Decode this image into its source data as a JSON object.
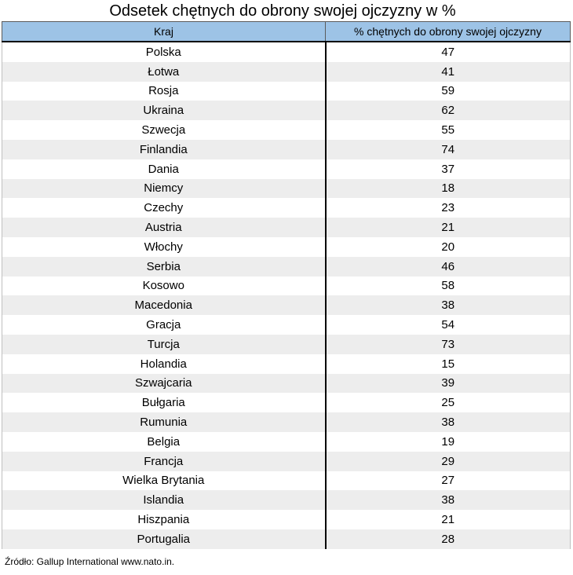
{
  "chart_data": {
    "type": "table",
    "title": "Odsetek chętnych do obrony swojej ojczyzny w %",
    "columns": [
      "Kraj",
      "% chętnych do obrony swojej ojczyzny"
    ],
    "rows": [
      [
        "Polska",
        "47"
      ],
      [
        "Łotwa",
        "41"
      ],
      [
        "Rosja",
        "59"
      ],
      [
        "Ukraina",
        "62"
      ],
      [
        "Szwecja",
        "55"
      ],
      [
        "Finlandia",
        "74"
      ],
      [
        "Dania",
        "37"
      ],
      [
        "Niemcy",
        "18"
      ],
      [
        "Czechy",
        "23"
      ],
      [
        "Austria",
        "21"
      ],
      [
        "Włochy",
        "20"
      ],
      [
        "Serbia",
        "46"
      ],
      [
        "Kosowo",
        "58"
      ],
      [
        "Macedonia",
        "38"
      ],
      [
        "Gracja",
        "54"
      ],
      [
        "Turcja",
        "73"
      ],
      [
        "Holandia",
        "15"
      ],
      [
        "Szwajcaria",
        "39"
      ],
      [
        "Bułgaria",
        "25"
      ],
      [
        "Rumunia",
        "38"
      ],
      [
        "Belgia",
        "19"
      ],
      [
        "Francja",
        "29"
      ],
      [
        "Wielka Brytania",
        "27"
      ],
      [
        "Islandia",
        "38"
      ],
      [
        "Hiszpania",
        "21"
      ],
      [
        "Portugalia",
        "28"
      ]
    ],
    "source": "Źródło: Gallup International www.nato.in."
  },
  "colors": {
    "header_background": "#9dc3e6",
    "stripe_background": "#ededed"
  }
}
